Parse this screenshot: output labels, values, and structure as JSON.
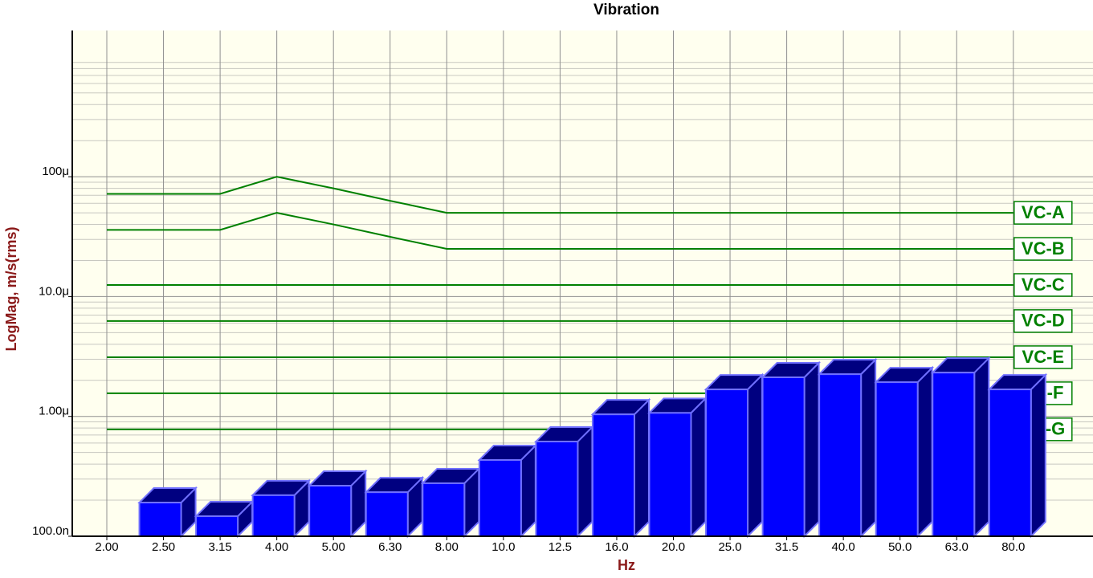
{
  "chart_data": {
    "type": "bar",
    "title": "Vibration",
    "x_label": "Hz",
    "y_label": "LogMag, m/s(rms)",
    "categories": [
      "2.00",
      "2.50",
      "3.15",
      "4.00",
      "5.00",
      "6.30",
      "8.00",
      "10.0",
      "12.5",
      "16.0",
      "20.0",
      "25.0",
      "31.5",
      "40.0",
      "50.0",
      "63.0",
      "80.0"
    ],
    "values": [
      null,
      1.91e-07,
      1.47e-07,
      2.2e-07,
      2.64e-07,
      2.33e-07,
      2.77e-07,
      4.33e-07,
      6.17e-07,
      1.04e-06,
      1.07e-06,
      1.68e-06,
      2.12e-06,
      2.25e-06,
      1.93e-06,
      2.32e-06,
      1.68e-06
    ],
    "color": "#0000ff",
    "log_y": true,
    "grid": true,
    "ylim": [
      1e-07,
      0.00166
    ],
    "yticks": [
      {
        "value": 1e-07,
        "label": "100.0n"
      },
      {
        "value": 1e-06,
        "label": "1.00μ"
      },
      {
        "value": 1e-05,
        "label": "10.0μ"
      },
      {
        "value": 0.0001,
        "label": "100μ"
      }
    ],
    "series": [
      {
        "name": "VC-A",
        "color": "#008000",
        "values": [
          7.2e-05,
          7.2e-05,
          7.2e-05,
          0.0001,
          8e-05,
          6.3e-05,
          5e-05,
          5e-05,
          5e-05,
          5e-05,
          5e-05,
          5e-05,
          5e-05,
          5e-05,
          5e-05,
          5e-05,
          5e-05
        ]
      },
      {
        "name": "VC-B",
        "color": "#008000",
        "values": [
          3.6e-05,
          3.6e-05,
          3.6e-05,
          5e-05,
          4e-05,
          3.15e-05,
          2.5e-05,
          2.5e-05,
          2.5e-05,
          2.5e-05,
          2.5e-05,
          2.5e-05,
          2.5e-05,
          2.5e-05,
          2.5e-05,
          2.5e-05,
          2.5e-05
        ]
      },
      {
        "name": "VC-C",
        "color": "#008000",
        "values": [
          1.25e-05,
          1.25e-05,
          1.25e-05,
          1.25e-05,
          1.25e-05,
          1.25e-05,
          1.25e-05,
          1.25e-05,
          1.25e-05,
          1.25e-05,
          1.25e-05,
          1.25e-05,
          1.25e-05,
          1.25e-05,
          1.25e-05,
          1.25e-05,
          1.25e-05
        ]
      },
      {
        "name": "VC-D",
        "color": "#008000",
        "values": [
          6.25e-06,
          6.25e-06,
          6.25e-06,
          6.25e-06,
          6.25e-06,
          6.25e-06,
          6.25e-06,
          6.25e-06,
          6.25e-06,
          6.25e-06,
          6.25e-06,
          6.25e-06,
          6.25e-06,
          6.25e-06,
          6.25e-06,
          6.25e-06,
          6.25e-06
        ]
      },
      {
        "name": "VC-E",
        "color": "#008000",
        "values": [
          3.12e-06,
          3.12e-06,
          3.12e-06,
          3.12e-06,
          3.12e-06,
          3.12e-06,
          3.12e-06,
          3.12e-06,
          3.12e-06,
          3.12e-06,
          3.12e-06,
          3.12e-06,
          3.12e-06,
          3.12e-06,
          3.12e-06,
          3.12e-06,
          3.12e-06
        ]
      },
      {
        "name": "VC-F",
        "color": "#008000",
        "values": [
          1.56e-06,
          1.56e-06,
          1.56e-06,
          1.56e-06,
          1.56e-06,
          1.56e-06,
          1.56e-06,
          1.56e-06,
          1.56e-06,
          1.56e-06,
          1.56e-06,
          1.56e-06,
          1.56e-06,
          1.56e-06,
          1.56e-06,
          1.56e-06,
          1.56e-06
        ]
      },
      {
        "name": "VC-G",
        "color": "#008000",
        "values": [
          7.8e-07,
          7.8e-07,
          7.8e-07,
          7.8e-07,
          7.8e-07,
          7.8e-07,
          7.8e-07,
          7.8e-07,
          7.8e-07,
          7.8e-07,
          7.8e-07,
          7.8e-07,
          7.8e-07,
          7.8e-07,
          7.8e-07,
          7.8e-07,
          7.8e-07
        ]
      }
    ]
  }
}
